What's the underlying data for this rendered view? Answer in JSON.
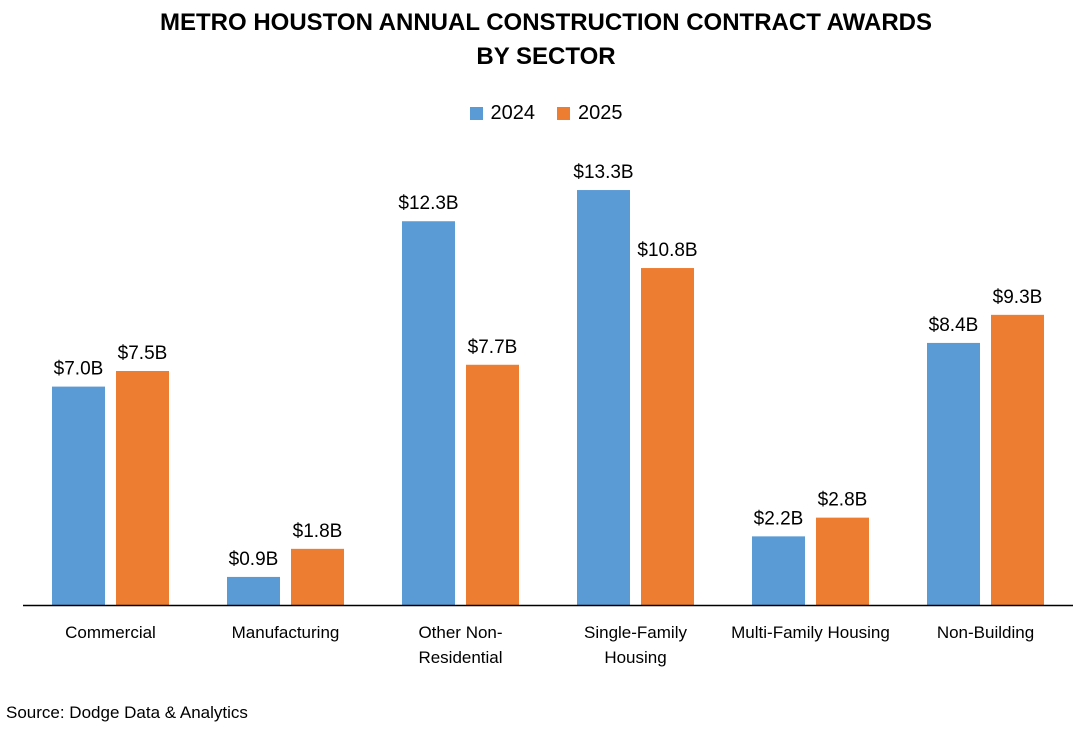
{
  "chart_data": {
    "type": "bar",
    "title": "METRO HOUSTON ANNUAL CONSTRUCTION CONTRACT AWARDS BY SECTOR",
    "title_lines": [
      "METRO HOUSTON ANNUAL CONSTRUCTION CONTRACT AWARDS",
      "BY SECTOR"
    ],
    "categories": [
      "Commercial",
      "Manufacturing",
      "Other Non-Residential",
      "Single-Family Housing",
      "Multi-Family Housing",
      "Non-Building"
    ],
    "category_lines": [
      [
        "Commercial"
      ],
      [
        "Manufacturing"
      ],
      [
        "Other Non-",
        "Residential"
      ],
      [
        "Single-Family",
        "Housing"
      ],
      [
        "Multi-Family Housing"
      ],
      [
        "Non-Building"
      ]
    ],
    "series": [
      {
        "name": "2024",
        "color": "#5B9BD5",
        "values": [
          7.0,
          0.9,
          12.3,
          13.3,
          2.2,
          8.4
        ],
        "labels": [
          "$7.0B",
          "$0.9B",
          "$12.3B",
          "$13.3B",
          "$2.2B",
          "$8.4B"
        ]
      },
      {
        "name": "2025",
        "color": "#ED7D31",
        "values": [
          7.5,
          1.8,
          7.7,
          10.8,
          2.8,
          9.3
        ],
        "labels": [
          "$7.5B",
          "$1.8B",
          "$7.7B",
          "$10.8B",
          "$2.8B",
          "$9.3B"
        ]
      }
    ],
    "unit": "$ billions",
    "xlabel": "",
    "ylabel": "",
    "ylim": [
      0,
      14
    ],
    "grid": false,
    "legend": "top-center",
    "source": "Source: Dodge Data & Analytics"
  }
}
